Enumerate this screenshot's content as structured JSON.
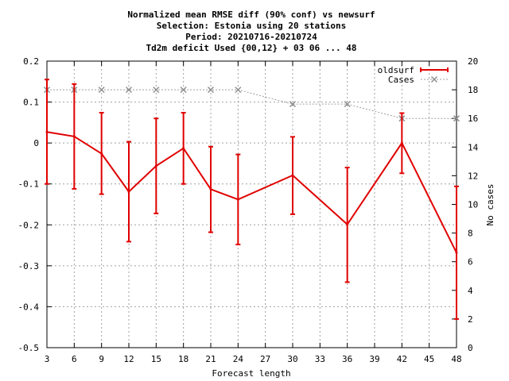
{
  "chart_data": {
    "type": "line",
    "title_lines": [
      "Normalized mean RMSE diff (90% conf) vs newsurf",
      "Selection: Estonia using    20 stations",
      "Period: 20210716-20210724",
      "Td2m deficit   Used {00,12} + 03 06 ... 48"
    ],
    "xlabel": "Forecast length",
    "ylabel": "",
    "y2label": "No cases",
    "xlim": [
      3,
      48
    ],
    "ylim": [
      -0.5,
      0.2
    ],
    "y2lim": [
      0,
      20
    ],
    "x_ticks": [
      3,
      6,
      9,
      12,
      15,
      18,
      21,
      24,
      27,
      30,
      33,
      36,
      39,
      42,
      45,
      48
    ],
    "y_ticks": [
      "0.2",
      "0.1",
      "0",
      "-0.1",
      "-0.2",
      "-0.3",
      "-0.4",
      "-0.5"
    ],
    "y_tick_values": [
      0.2,
      0.1,
      0,
      -0.1,
      -0.2,
      -0.3,
      -0.4,
      -0.5
    ],
    "y2_ticks": [
      "20",
      "18",
      "16",
      "14",
      "12",
      "10",
      "8",
      "6",
      "4",
      "2",
      "0"
    ],
    "y2_tick_values": [
      20,
      18,
      16,
      14,
      12,
      10,
      8,
      6,
      4,
      2,
      0
    ],
    "grid": true,
    "legend_position": "top-right",
    "series": [
      {
        "name": "oldsurf",
        "color": "#e00000",
        "axis": "left",
        "x": [
          3,
          6,
          9,
          12,
          15,
          18,
          21,
          24,
          30,
          36,
          42,
          48
        ],
        "values": [
          0.027,
          0.016,
          -0.026,
          -0.119,
          -0.056,
          -0.013,
          -0.113,
          -0.138,
          -0.079,
          -0.199,
          0.0,
          -0.268
        ],
        "err_low": [
          -0.1,
          -0.112,
          -0.125,
          -0.241,
          -0.172,
          -0.1,
          -0.218,
          -0.248,
          -0.174,
          -0.34,
          -0.074,
          -0.43
        ],
        "err_high": [
          0.155,
          0.144,
          0.074,
          0.003,
          0.06,
          0.074,
          -0.009,
          -0.028,
          0.015,
          -0.06,
          0.073,
          -0.106
        ]
      },
      {
        "name": "Cases",
        "color": "#a0a0a0",
        "axis": "right",
        "x": [
          3,
          6,
          9,
          12,
          15,
          18,
          21,
          24,
          30,
          36,
          42,
          48
        ],
        "values": [
          18,
          18,
          18,
          18,
          18,
          18,
          18,
          18,
          17,
          17,
          16,
          16
        ]
      }
    ]
  }
}
